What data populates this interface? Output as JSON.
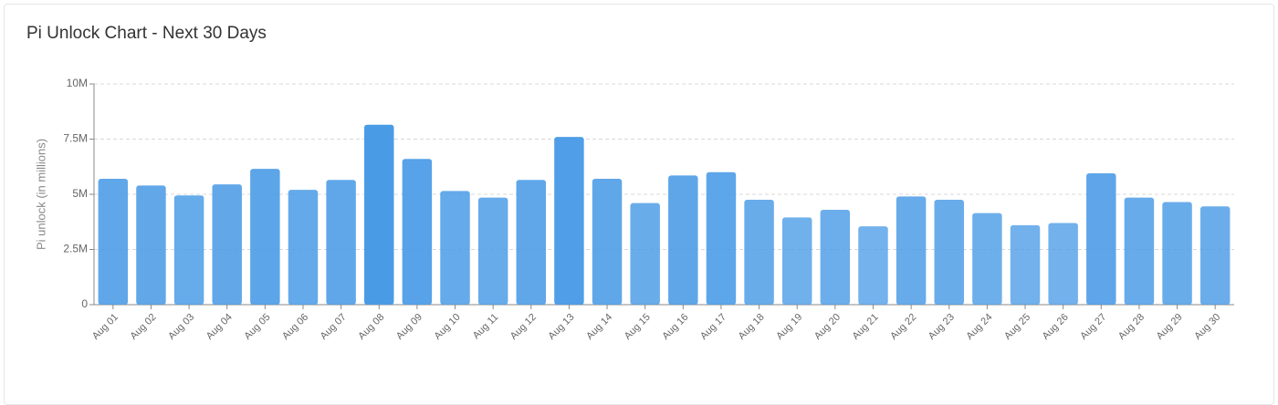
{
  "chart_data": {
    "type": "bar",
    "title": "Pi Unlock Chart - Next 30 Days",
    "y_label": "Pi unlock (in millions)",
    "categories": [
      "Aug 01",
      "Aug 02",
      "Aug 03",
      "Aug 04",
      "Aug 05",
      "Aug 06",
      "Aug 07",
      "Aug 08",
      "Aug 09",
      "Aug 10",
      "Aug 11",
      "Aug 12",
      "Aug 13",
      "Aug 14",
      "Aug 15",
      "Aug 16",
      "Aug 17",
      "Aug 18",
      "Aug 19",
      "Aug 20",
      "Aug 21",
      "Aug 22",
      "Aug 23",
      "Aug 24",
      "Aug 25",
      "Aug 26",
      "Aug 27",
      "Aug 28",
      "Aug 29",
      "Aug 30"
    ],
    "values": [
      5700000,
      5400000,
      4950000,
      5450000,
      6150000,
      5200000,
      5650000,
      8150000,
      6600000,
      5150000,
      4850000,
      5650000,
      7600000,
      5700000,
      4600000,
      5850000,
      6000000,
      4750000,
      3950000,
      4300000,
      3550000,
      4900000,
      4750000,
      4150000,
      3600000,
      3700000,
      5950000,
      4850000,
      4650000,
      4450000
    ],
    "color": "#4a9be6",
    "ylim": [
      0,
      10000000
    ],
    "yticks": [
      {
        "value": 0,
        "label": "0"
      },
      {
        "value": 2500000,
        "label": "2.5M"
      },
      {
        "value": 5000000,
        "label": "5M"
      },
      {
        "value": 7500000,
        "label": "7.5M"
      },
      {
        "value": 10000000,
        "label": "10M"
      }
    ],
    "grid": true
  }
}
